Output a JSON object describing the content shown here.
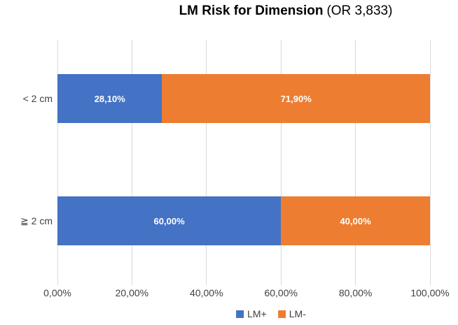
{
  "title": {
    "main": "LM Risk for Dimension",
    "suffix": "(OR 3,833)"
  },
  "chart_data": {
    "type": "bar",
    "orientation": "horizontal",
    "stacked": true,
    "title": "LM Risk for Dimension (OR 3,833)",
    "categories": [
      "< 2 cm",
      "≧ 2 cm"
    ],
    "series": [
      {
        "name": "LM+",
        "color": "#4472C4",
        "values": [
          28.1,
          60.0
        ],
        "labels": [
          "28,10%",
          "60,00%"
        ]
      },
      {
        "name": "LM-",
        "color": "#ED7D31",
        "values": [
          71.9,
          40.0
        ],
        "labels": [
          "71,90%",
          "40,00%"
        ]
      }
    ],
    "x_axis": {
      "min": 0,
      "max": 100,
      "tick_labels": [
        "0,00%",
        "20,00%",
        "40,00%",
        "60,00%",
        "80,00%",
        "100,00%"
      ]
    },
    "grid": true,
    "legend_position": "bottom",
    "colors": {
      "gridline": "#D9D9D9",
      "axis_text": "#404040",
      "title_text": "#000000",
      "data_label_text": "#FFFFFF"
    }
  }
}
